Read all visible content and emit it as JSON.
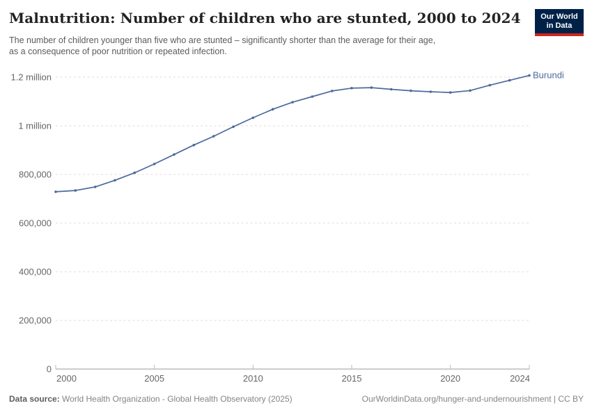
{
  "header": {
    "title": "Malnutrition: Number of children who are stunted, 2000 to 2024",
    "subtitle_line1": "The number of children younger than five who are stunted – significantly shorter than the average for their age,",
    "subtitle_line2": "as a consequence of poor nutrition or repeated infection.",
    "logo": {
      "line1": "Our World",
      "line2": "in Data",
      "bg_color": "#002147",
      "bar_color": "#CE261E"
    }
  },
  "chart_data": {
    "type": "line",
    "title": "Malnutrition: Number of children who are stunted, 2000 to 2024",
    "xlabel": "",
    "ylabel": "",
    "xlim": [
      2000,
      2024
    ],
    "ylim": [
      0,
      1200000
    ],
    "grid": "horizontal-dashed",
    "legend_position": "end-of-line-label",
    "x_ticks": [
      2000,
      2005,
      2010,
      2015,
      2020,
      2024
    ],
    "y_ticks": [
      {
        "value": 0,
        "label": "0"
      },
      {
        "value": 200000,
        "label": "200,000"
      },
      {
        "value": 400000,
        "label": "400,000"
      },
      {
        "value": 600000,
        "label": "600,000"
      },
      {
        "value": 800000,
        "label": "800,000"
      },
      {
        "value": 1000000,
        "label": "1 million"
      },
      {
        "value": 1200000,
        "label": "1.2 million"
      }
    ],
    "series": [
      {
        "name": "Burundi",
        "color": "#4C6A9C",
        "x": [
          2000,
          2001,
          2002,
          2003,
          2004,
          2005,
          2006,
          2007,
          2008,
          2009,
          2010,
          2011,
          2012,
          2013,
          2014,
          2015,
          2016,
          2017,
          2018,
          2019,
          2020,
          2021,
          2022,
          2023,
          2024
        ],
        "values": [
          729000,
          734000,
          749000,
          776000,
          807000,
          843000,
          882000,
          921000,
          957000,
          996000,
          1033000,
          1068000,
          1097000,
          1120000,
          1143000,
          1155000,
          1157000,
          1150000,
          1144000,
          1140000,
          1137000,
          1145000,
          1167000,
          1187000,
          1207000
        ]
      }
    ],
    "style": {
      "gridline_color": "#dcdcdc",
      "axis_color": "#999999",
      "tick_color": "#bbbbbb",
      "tick_label_color": "#666666"
    }
  },
  "footer": {
    "datasource_label": "Data source:",
    "datasource_value": "World Health Organization - Global Health Observatory (2025)",
    "rights": "OurWorldinData.org/hunger-and-undernourishment | CC BY"
  }
}
